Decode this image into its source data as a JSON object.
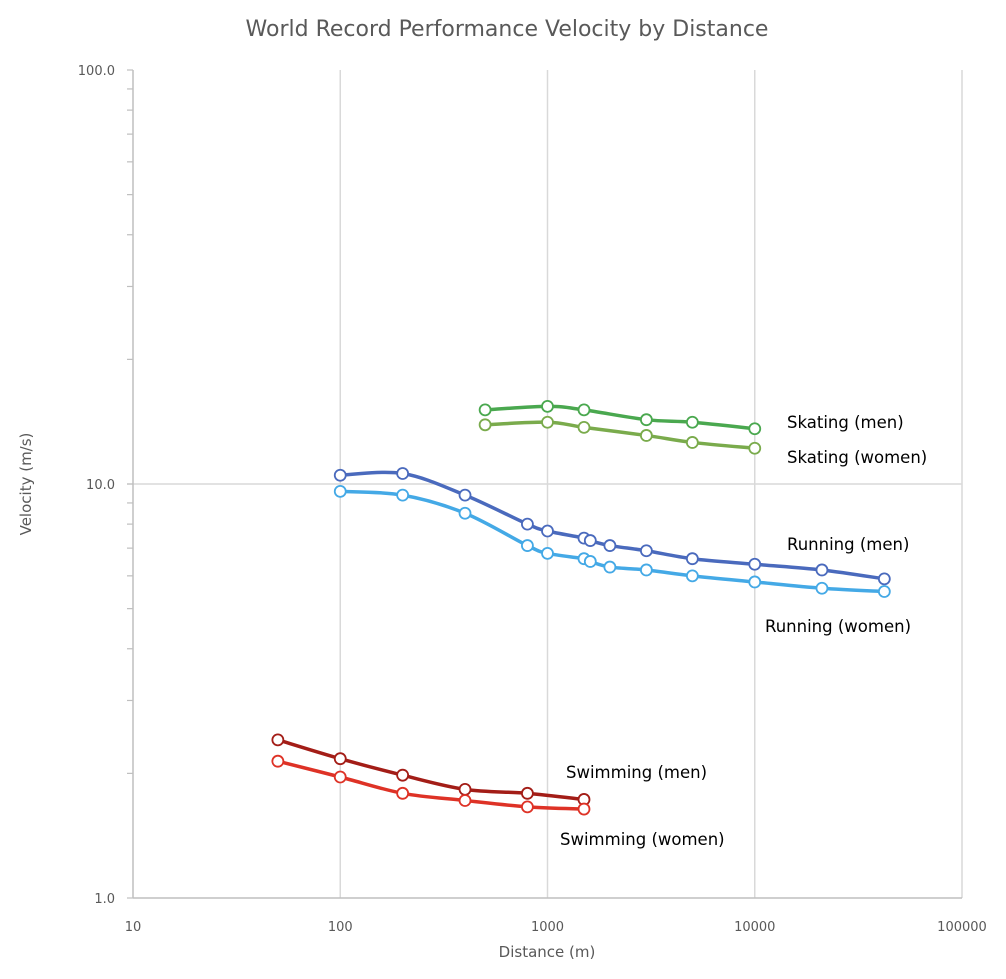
{
  "chart_data": {
    "type": "line",
    "title": "World Record Performance Velocity by Distance",
    "xlabel": "Distance (m)",
    "ylabel": "Velocity (m/s)",
    "xscale": "log",
    "yscale": "log",
    "xlim": [
      10,
      100000
    ],
    "ylim": [
      1,
      100
    ],
    "xticks": [
      "10",
      "100",
      "1000",
      "10000",
      "100000"
    ],
    "yticks": [
      "1.0",
      "10.0",
      "100.0"
    ],
    "grid": "vertical at decades, horizontal at 10",
    "legend": "inline labels at line ends",
    "series": [
      {
        "name": "Skating (men)",
        "color": "#4aa84f",
        "x": [
          500,
          1000,
          1500,
          3000,
          5000,
          10000
        ],
        "y": [
          15.1,
          15.4,
          15.1,
          14.3,
          14.1,
          13.6
        ]
      },
      {
        "name": "Skating (women)",
        "color": "#7aab4c",
        "x": [
          500,
          1000,
          1500,
          3000,
          5000,
          10000
        ],
        "y": [
          13.9,
          14.1,
          13.7,
          13.1,
          12.6,
          12.2
        ]
      },
      {
        "name": "Running (men)",
        "color": "#4a6abd",
        "x": [
          100,
          200,
          400,
          800,
          1000,
          1500,
          1609,
          2000,
          3000,
          5000,
          10000,
          21097,
          42195
        ],
        "y": [
          10.5,
          10.6,
          9.4,
          8.0,
          7.7,
          7.4,
          7.3,
          7.1,
          6.9,
          6.6,
          6.4,
          6.2,
          5.9
        ]
      },
      {
        "name": "Running (women)",
        "color": "#44a9e6",
        "x": [
          100,
          200,
          400,
          800,
          1000,
          1500,
          1609,
          2000,
          3000,
          5000,
          10000,
          21097,
          42195
        ],
        "y": [
          9.6,
          9.4,
          8.5,
          7.1,
          6.8,
          6.6,
          6.5,
          6.3,
          6.2,
          6.0,
          5.8,
          5.6,
          5.5
        ]
      },
      {
        "name": "Swimming (men)",
        "color": "#a31d17",
        "x": [
          50,
          100,
          200,
          400,
          800,
          1500
        ],
        "y": [
          2.41,
          2.17,
          1.98,
          1.83,
          1.79,
          1.73
        ]
      },
      {
        "name": "Swimming (women)",
        "color": "#de3226",
        "x": [
          50,
          100,
          200,
          400,
          800,
          1500
        ],
        "y": [
          2.14,
          1.96,
          1.79,
          1.72,
          1.66,
          1.64
        ]
      }
    ]
  }
}
